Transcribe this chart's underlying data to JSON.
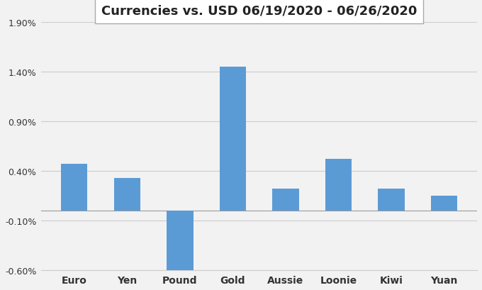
{
  "title": "Currencies vs. USD 06/19/2020 - 06/26/2020",
  "categories": [
    "Euro",
    "Yen",
    "Pound",
    "Gold",
    "Aussie",
    "Loonie",
    "Kiwi",
    "Yuan"
  ],
  "values": [
    0.0047,
    0.0033,
    -0.0062,
    0.0145,
    0.0022,
    0.0052,
    0.0022,
    0.0015
  ],
  "bar_color": "#5B9BD5",
  "background_color": "#F2F2F2",
  "grid_color": "#CCCCCC",
  "ylim": [
    -0.006,
    0.019
  ],
  "yticks": [
    -0.006,
    -0.001,
    0.004,
    0.009,
    0.014,
    0.019
  ],
  "ytick_labels": [
    "-0.60%",
    "-0.10%",
    "0.40%",
    "0.90%",
    "1.40%",
    "1.90%"
  ],
  "title_fontsize": 13,
  "title_box_facecolor": "#FFFFFF",
  "title_box_edgecolor": "#AAAAAA"
}
